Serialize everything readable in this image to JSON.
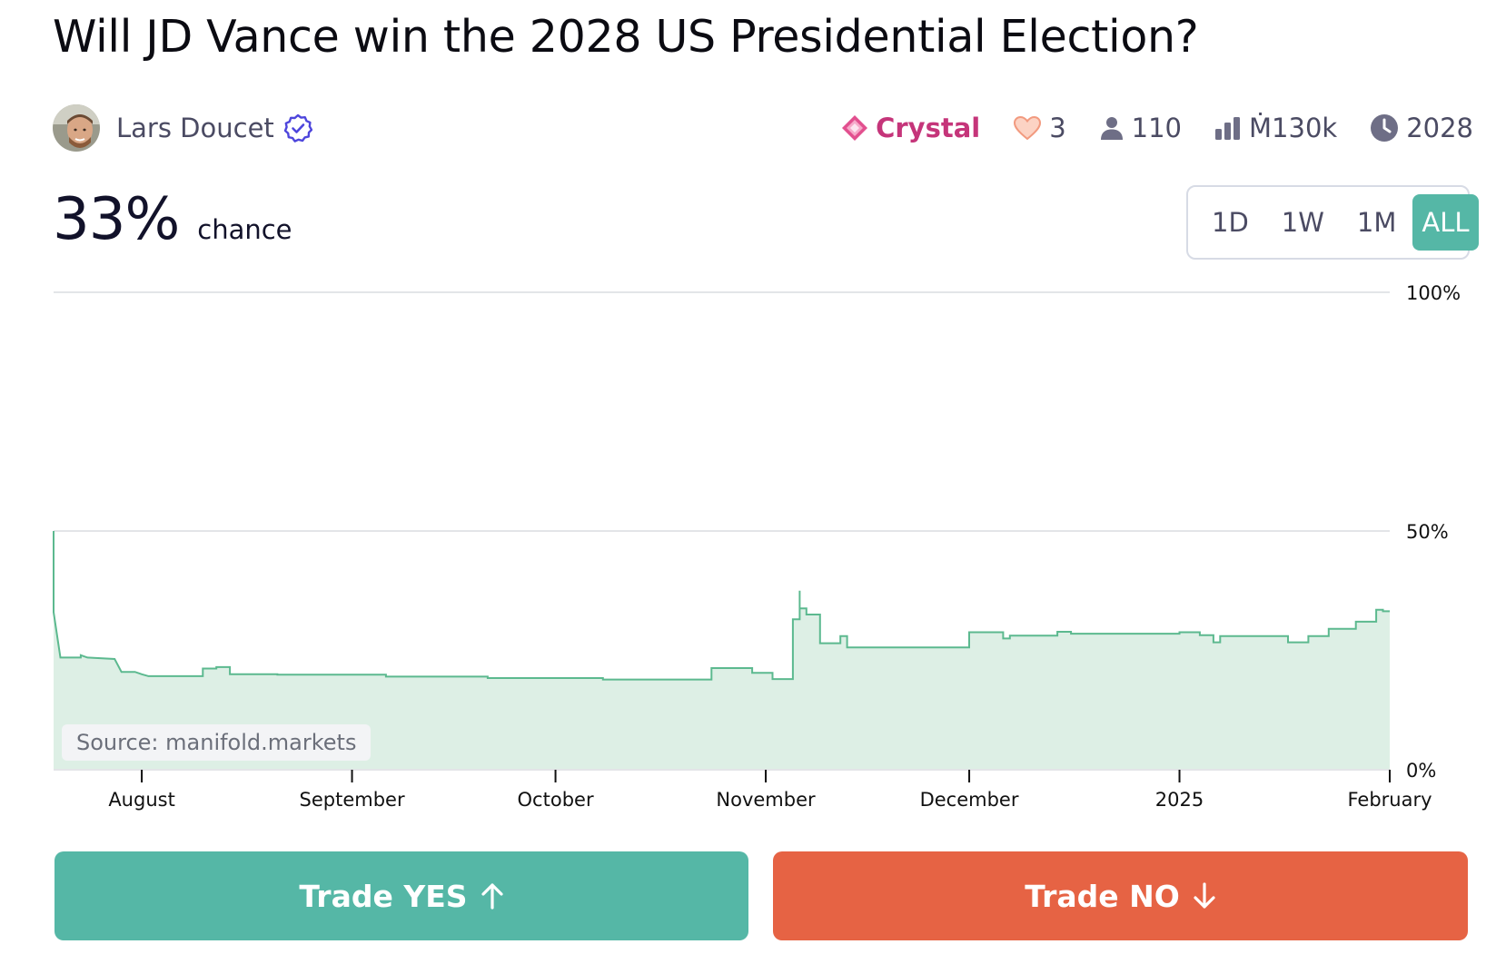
{
  "question": {
    "title": "Will JD Vance win the 2028 US Presidential Election?"
  },
  "author": {
    "name": "Lars Doucet",
    "avatar_icon": "avatar-photo",
    "verified_icon": "verified-badge-icon"
  },
  "stats": {
    "tier": {
      "label": "Crystal",
      "icon": "crystal-icon",
      "color": "#c5357a"
    },
    "likes": {
      "value": "3",
      "icon": "heart-icon"
    },
    "traders": {
      "value": "110",
      "icon": "user-icon"
    },
    "volume": {
      "value": "Ṁ130k",
      "icon": "bar-chart-icon"
    },
    "close": {
      "value": "2028",
      "icon": "clock-icon"
    }
  },
  "probability": {
    "value": "33%",
    "label": "chance"
  },
  "time_range": {
    "options": [
      "1D",
      "1W",
      "1M",
      "ALL"
    ],
    "selected": "ALL"
  },
  "chart_data": {
    "type": "area",
    "y_ticks": [
      "100%",
      "50%",
      "0%"
    ],
    "ylim": [
      0,
      100
    ],
    "x_ticks": [
      {
        "label": "August",
        "date": "2024-08-01"
      },
      {
        "label": "September",
        "date": "2024-09-01"
      },
      {
        "label": "October",
        "date": "2024-10-01"
      },
      {
        "label": "November",
        "date": "2024-11-01"
      },
      {
        "label": "December",
        "date": "2024-12-01"
      },
      {
        "label": "2025",
        "date": "2025-01-01"
      },
      {
        "label": "February",
        "date": "2025-02-01"
      }
    ],
    "xlim": [
      "2024-07-19",
      "2025-02-01"
    ],
    "color": "#5cb98f",
    "fill_color": "#ddefe5",
    "series": [
      {
        "points": [
          [
            "2024-07-19",
            50
          ],
          [
            "2024-07-19",
            33
          ],
          [
            "2024-07-20",
            23.5
          ],
          [
            "2024-07-23",
            23.5
          ],
          [
            "2024-07-23",
            24
          ],
          [
            "2024-07-24",
            23.5
          ],
          [
            "2024-07-28",
            23.2
          ],
          [
            "2024-07-29",
            20.5
          ],
          [
            "2024-07-31",
            20.5
          ],
          [
            "2024-08-01",
            20
          ],
          [
            "2024-08-02",
            19.6
          ],
          [
            "2024-08-10",
            19.6
          ],
          [
            "2024-08-10",
            21.2
          ],
          [
            "2024-08-12",
            21.2
          ],
          [
            "2024-08-12",
            21.5
          ],
          [
            "2024-08-14",
            21.5
          ],
          [
            "2024-08-14",
            20
          ],
          [
            "2024-08-21",
            20
          ],
          [
            "2024-08-21",
            19.9
          ],
          [
            "2024-09-06",
            19.9
          ],
          [
            "2024-09-06",
            19.5
          ],
          [
            "2024-09-21",
            19.5
          ],
          [
            "2024-09-21",
            19.2
          ],
          [
            "2024-10-08",
            19.2
          ],
          [
            "2024-10-08",
            18.9
          ],
          [
            "2024-10-24",
            18.9
          ],
          [
            "2024-10-24",
            21.3
          ],
          [
            "2024-10-30",
            21.3
          ],
          [
            "2024-10-30",
            20.3
          ],
          [
            "2024-11-02",
            20.3
          ],
          [
            "2024-11-02",
            19
          ],
          [
            "2024-11-05",
            19
          ],
          [
            "2024-11-05",
            31.5
          ],
          [
            "2024-11-06",
            31.5
          ],
          [
            "2024-11-06",
            37.5
          ],
          [
            "2024-11-06",
            33.8
          ],
          [
            "2024-11-07",
            33.8
          ],
          [
            "2024-11-07",
            32.5
          ],
          [
            "2024-11-09",
            32.5
          ],
          [
            "2024-11-09",
            26.5
          ],
          [
            "2024-11-12",
            26.5
          ],
          [
            "2024-11-12",
            28
          ],
          [
            "2024-11-13",
            28
          ],
          [
            "2024-11-13",
            25.6
          ],
          [
            "2024-12-01",
            25.6
          ],
          [
            "2024-12-01",
            28.8
          ],
          [
            "2024-12-06",
            28.8
          ],
          [
            "2024-12-06",
            27.5
          ],
          [
            "2024-12-07",
            27.5
          ],
          [
            "2024-12-07",
            28.1
          ],
          [
            "2024-12-14",
            28.1
          ],
          [
            "2024-12-14",
            28.9
          ],
          [
            "2024-12-16",
            28.9
          ],
          [
            "2024-12-16",
            28.5
          ],
          [
            "2025-01-01",
            28.5
          ],
          [
            "2025-01-01",
            28.8
          ],
          [
            "2025-01-04",
            28.8
          ],
          [
            "2025-01-04",
            28.2
          ],
          [
            "2025-01-06",
            28.2
          ],
          [
            "2025-01-06",
            26.7
          ],
          [
            "2025-01-07",
            26.7
          ],
          [
            "2025-01-07",
            28
          ],
          [
            "2025-01-17",
            28
          ],
          [
            "2025-01-17",
            26.7
          ],
          [
            "2025-01-20",
            26.7
          ],
          [
            "2025-01-20",
            28
          ],
          [
            "2025-01-23",
            28
          ],
          [
            "2025-01-23",
            29.5
          ],
          [
            "2025-01-27",
            29.5
          ],
          [
            "2025-01-27",
            31
          ],
          [
            "2025-01-30",
            31
          ],
          [
            "2025-01-30",
            33.5
          ],
          [
            "2025-01-31",
            33.5
          ],
          [
            "2025-01-31",
            33.2
          ],
          [
            "2025-02-01",
            33.2
          ]
        ]
      }
    ],
    "source_label": "Source: manifold.markets"
  },
  "actions": {
    "yes_label": "Trade YES",
    "no_label": "Trade NO",
    "yes_color": "#55b7a6",
    "no_color": "#e66344"
  }
}
